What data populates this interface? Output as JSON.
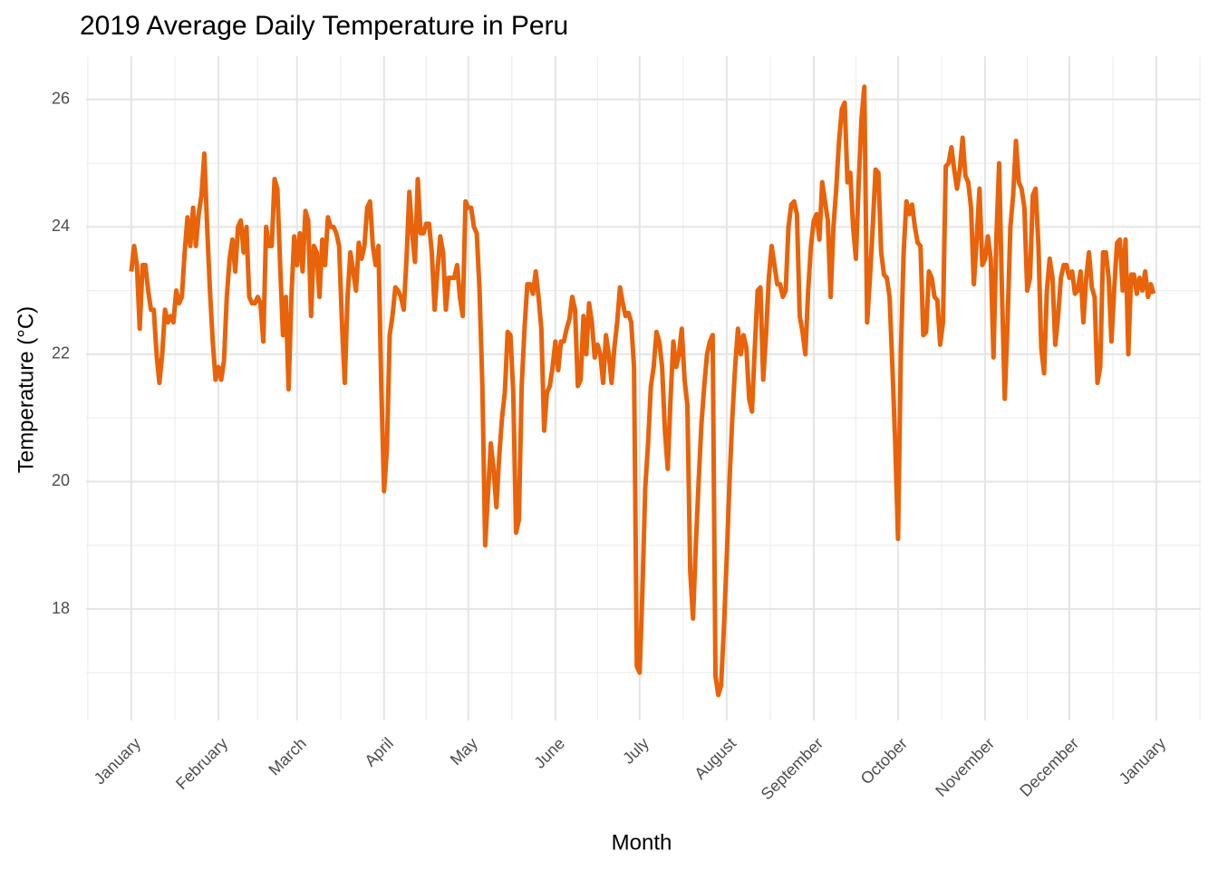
{
  "chart_data": {
    "type": "line",
    "title": "2019 Average Daily Temperature in Peru",
    "x_label": "Month",
    "y_label": "Temperature (°C)",
    "color": "#e8630a",
    "grid": true,
    "xlim": [
      -15.1,
      381.8
    ],
    "ylim": [
      16.25,
      26.68
    ],
    "xticks": [
      {
        "value": 1,
        "label": "January"
      },
      {
        "value": 32,
        "label": "February"
      },
      {
        "value": 60,
        "label": "March"
      },
      {
        "value": 91,
        "label": "April"
      },
      {
        "value": 121,
        "label": "May"
      },
      {
        "value": 152,
        "label": "June"
      },
      {
        "value": 182,
        "label": "July"
      },
      {
        "value": 213,
        "label": "August"
      },
      {
        "value": 244,
        "label": "September"
      },
      {
        "value": 274,
        "label": "October"
      },
      {
        "value": 305,
        "label": "November"
      },
      {
        "value": 335,
        "label": "December"
      },
      {
        "value": 366,
        "label": "January"
      }
    ],
    "yticks": [
      18,
      20,
      22,
      24,
      26
    ],
    "x": [
      1,
      2,
      3,
      4,
      5,
      6,
      7,
      8,
      9,
      10,
      11,
      12,
      13,
      14,
      15,
      16,
      17,
      18,
      19,
      20,
      21,
      22,
      23,
      24,
      25,
      26,
      27,
      28,
      29,
      30,
      31,
      32,
      33,
      34,
      35,
      36,
      37,
      38,
      39,
      40,
      41,
      42,
      43,
      44,
      45,
      46,
      47,
      48,
      49,
      50,
      51,
      52,
      53,
      54,
      55,
      56,
      57,
      58,
      59,
      60,
      61,
      62,
      63,
      64,
      65,
      66,
      67,
      68,
      69,
      70,
      71,
      72,
      73,
      74,
      75,
      76,
      77,
      78,
      79,
      80,
      81,
      82,
      83,
      84,
      85,
      86,
      87,
      88,
      89,
      90,
      91,
      92,
      93,
      94,
      95,
      96,
      97,
      98,
      99,
      100,
      101,
      102,
      103,
      104,
      105,
      106,
      107,
      108,
      109,
      110,
      111,
      112,
      113,
      114,
      115,
      116,
      117,
      118,
      119,
      120,
      121,
      122,
      123,
      124,
      125,
      126,
      127,
      128,
      129,
      130,
      131,
      132,
      133,
      134,
      135,
      136,
      137,
      138,
      139,
      140,
      141,
      142,
      143,
      144,
      145,
      146,
      147,
      148,
      149,
      150,
      151,
      152,
      153,
      154,
      155,
      156,
      157,
      158,
      159,
      160,
      161,
      162,
      163,
      164,
      165,
      166,
      167,
      168,
      169,
      170,
      171,
      172,
      173,
      174,
      175,
      176,
      177,
      178,
      179,
      180,
      181,
      182,
      183,
      184,
      185,
      186,
      187,
      188,
      189,
      190,
      191,
      192,
      193,
      194,
      195,
      196,
      197,
      198,
      199,
      200,
      201,
      202,
      203,
      204,
      205,
      206,
      207,
      208,
      209,
      210,
      211,
      212,
      213,
      214,
      215,
      216,
      217,
      218,
      219,
      220,
      221,
      222,
      223,
      224,
      225,
      226,
      227,
      228,
      229,
      230,
      231,
      232,
      233,
      234,
      235,
      236,
      237,
      238,
      239,
      240,
      241,
      242,
      243,
      244,
      245,
      246,
      247,
      248,
      249,
      250,
      251,
      252,
      253,
      254,
      255,
      256,
      257,
      258,
      259,
      260,
      261,
      262,
      263,
      264,
      265,
      266,
      267,
      268,
      269,
      270,
      271,
      272,
      273,
      274,
      275,
      276,
      277,
      278,
      279,
      280,
      281,
      282,
      283,
      284,
      285,
      286,
      287,
      288,
      289,
      290,
      291,
      292,
      293,
      294,
      295,
      296,
      297,
      298,
      299,
      300,
      301,
      302,
      303,
      304,
      305,
      306,
      307,
      308,
      309,
      310,
      311,
      312,
      313,
      314,
      315,
      316,
      317,
      318,
      319,
      320,
      321,
      322,
      323,
      324,
      325,
      326,
      327,
      328,
      329,
      330,
      331,
      332,
      333,
      334,
      335,
      336,
      337,
      338,
      339,
      340,
      341,
      342,
      343,
      344,
      345,
      346,
      347,
      348,
      349,
      350,
      351,
      352,
      353,
      354,
      355,
      356,
      357,
      358,
      359,
      360,
      361,
      362,
      363,
      364,
      365
    ],
    "values": [
      23.3,
      23.7,
      23.4,
      22.4,
      23.4,
      23.4,
      23.0,
      22.7,
      22.7,
      22.0,
      21.55,
      22.0,
      22.7,
      22.5,
      22.6,
      22.5,
      23.0,
      22.8,
      22.9,
      23.6,
      24.15,
      23.7,
      24.3,
      23.7,
      24.2,
      24.5,
      25.15,
      24.0,
      23.0,
      22.2,
      21.6,
      21.8,
      21.6,
      21.9,
      22.9,
      23.5,
      23.8,
      23.3,
      24.0,
      24.1,
      23.6,
      24.0,
      22.9,
      22.8,
      22.8,
      22.9,
      22.8,
      22.2,
      24.0,
      23.7,
      23.7,
      24.75,
      24.6,
      23.4,
      22.3,
      22.9,
      21.45,
      22.9,
      23.85,
      23.4,
      23.9,
      23.3,
      24.25,
      24.1,
      22.6,
      23.7,
      23.6,
      22.9,
      23.8,
      23.4,
      24.15,
      24.0,
      24.0,
      23.9,
      23.7,
      22.5,
      21.55,
      22.9,
      23.6,
      23.3,
      23.0,
      23.75,
      23.5,
      23.7,
      24.3,
      24.4,
      23.7,
      23.4,
      23.7,
      21.5,
      19.85,
      20.5,
      22.3,
      22.6,
      23.05,
      23.0,
      22.9,
      22.7,
      23.5,
      24.55,
      23.9,
      23.45,
      24.75,
      23.9,
      23.9,
      24.05,
      24.05,
      23.6,
      22.7,
      23.3,
      23.85,
      23.6,
      22.7,
      23.2,
      23.2,
      23.2,
      23.4,
      22.9,
      22.6,
      24.4,
      24.3,
      24.3,
      24.0,
      23.9,
      23.0,
      21.5,
      19.0,
      19.8,
      20.6,
      20.2,
      19.6,
      20.4,
      21.0,
      21.4,
      22.35,
      22.3,
      21.4,
      19.2,
      19.4,
      21.5,
      22.4,
      23.1,
      23.1,
      22.95,
      23.3,
      22.9,
      22.4,
      20.8,
      21.4,
      21.5,
      21.8,
      22.2,
      21.75,
      22.2,
      22.2,
      22.4,
      22.55,
      22.9,
      22.7,
      21.5,
      21.6,
      22.6,
      22.0,
      22.8,
      22.5,
      21.95,
      22.15,
      22.0,
      21.55,
      22.3,
      22.0,
      21.55,
      22.1,
      22.5,
      23.05,
      22.8,
      22.6,
      22.65,
      22.5,
      21.8,
      17.1,
      17.0,
      18.3,
      19.9,
      20.6,
      21.5,
      21.8,
      22.35,
      22.2,
      21.8,
      20.8,
      20.2,
      21.3,
      22.2,
      21.8,
      22.0,
      22.4,
      21.6,
      21.2,
      18.6,
      17.85,
      19.0,
      20.0,
      20.9,
      21.5,
      22.0,
      22.2,
      22.3,
      16.95,
      16.65,
      16.8,
      17.7,
      18.8,
      20.0,
      21.0,
      21.8,
      22.4,
      22.0,
      22.3,
      22.1,
      21.3,
      21.1,
      22.1,
      23.0,
      23.05,
      21.6,
      22.3,
      23.2,
      23.7,
      23.4,
      23.1,
      23.1,
      22.9,
      23.0,
      24.0,
      24.35,
      24.4,
      24.2,
      22.6,
      22.35,
      22.0,
      23.0,
      23.7,
      24.1,
      24.2,
      23.8,
      24.7,
      24.4,
      24.1,
      22.9,
      24.0,
      24.6,
      25.35,
      25.85,
      25.95,
      24.7,
      24.85,
      24.0,
      23.5,
      24.7,
      25.7,
      26.2,
      22.5,
      23.2,
      24.0,
      24.9,
      24.85,
      23.6,
      23.25,
      23.2,
      22.9,
      21.8,
      20.6,
      19.1,
      22.0,
      23.6,
      24.4,
      24.2,
      24.35,
      24.0,
      23.75,
      23.7,
      22.3,
      22.35,
      23.3,
      23.2,
      22.9,
      22.85,
      22.15,
      22.5,
      24.95,
      25.0,
      25.25,
      24.9,
      24.6,
      24.9,
      25.4,
      24.8,
      24.7,
      24.3,
      23.1,
      23.8,
      24.6,
      23.4,
      23.5,
      23.85,
      23.5,
      21.95,
      23.8,
      25.0,
      23.0,
      21.3,
      22.5,
      24.0,
      24.5,
      25.35,
      24.7,
      24.6,
      24.3,
      23.0,
      23.2,
      24.5,
      24.6,
      23.7,
      22.1,
      21.7,
      23.0,
      23.5,
      23.2,
      22.15,
      22.6,
      23.2,
      23.4,
      23.4,
      23.2,
      23.3,
      22.95,
      23.0,
      23.3,
      22.5,
      23.2,
      23.6,
      23.05,
      22.9,
      21.55,
      21.8,
      23.6,
      23.6,
      23.2,
      22.2,
      23.05,
      23.75,
      23.8,
      23.0,
      23.8,
      22.0,
      23.25,
      23.25,
      22.95,
      23.2,
      23.0,
      23.3,
      22.9,
      23.1,
      22.95
    ]
  }
}
